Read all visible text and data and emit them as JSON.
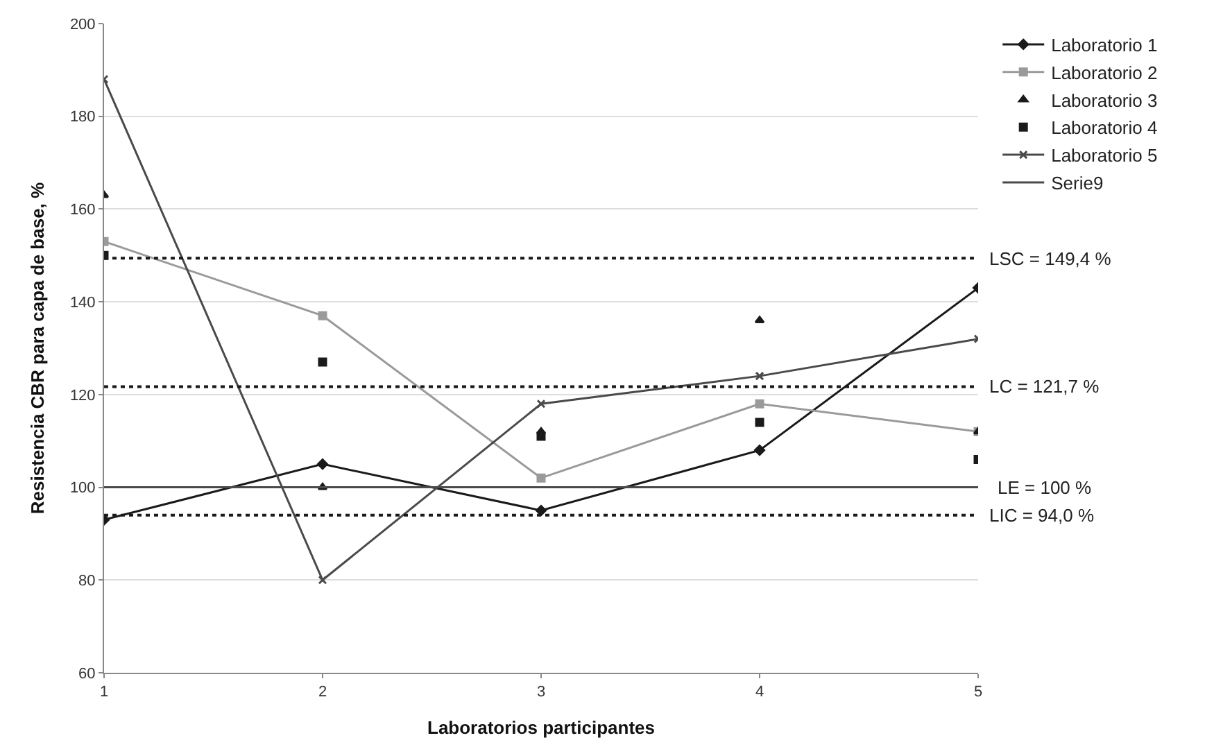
{
  "chart_data": {
    "type": "line",
    "xlabel": "Laboratorios participantes",
    "ylabel": "Resistencia CBR para capa de base, %",
    "x": [
      1,
      2,
      3,
      4,
      5
    ],
    "xlim": [
      1,
      5
    ],
    "xticks": [
      1,
      2,
      3,
      4,
      5
    ],
    "ylim": [
      60,
      200
    ],
    "yticks": [
      60,
      80,
      100,
      120,
      140,
      160,
      180,
      200
    ],
    "grid": "y",
    "legend": "top right",
    "series": [
      {
        "name": "Laboratorio 1",
        "color": "#1a1a1a",
        "marker": "diamond",
        "values": [
          93,
          105,
          95,
          108,
          143
        ]
      },
      {
        "name": "Laboratorio 2",
        "color": "#9a9a9a",
        "marker": "square",
        "values": [
          153,
          137,
          102,
          118,
          112
        ]
      },
      {
        "name": "Laboratorio 3",
        "type": "scatter",
        "color": "#1a1a1a",
        "marker": "triangle",
        "values": [
          163,
          100,
          112,
          136,
          112
        ]
      },
      {
        "name": "Laboratorio 4",
        "type": "scatter",
        "color": "#1a1a1a",
        "marker": "square",
        "values": [
          150,
          127,
          111,
          114,
          106
        ]
      },
      {
        "name": "Laboratorio 5",
        "color": "#4a4a4a",
        "marker": "cross",
        "values": [
          188,
          80,
          118,
          124,
          132
        ]
      },
      {
        "name": "Serie9",
        "color": "#4a4a4a",
        "marker": "none",
        "values": [
          100,
          100,
          100,
          100,
          100
        ]
      }
    ],
    "ref_lines": [
      {
        "axis": "y",
        "value": 149.4,
        "label": "LSC = 149,4 %",
        "line_style": "dotted",
        "color": "#1a1a1a"
      },
      {
        "axis": "y",
        "value": 121.7,
        "label": "LC = 121,7 %",
        "line_style": "dotted",
        "color": "#1a1a1a"
      },
      {
        "axis": "y",
        "value": 94.0,
        "label": "LIC = 94,0 %",
        "line_style": "dotted",
        "color": "#1a1a1a"
      }
    ],
    "annotations": [
      {
        "text": "LE = 100 %",
        "x": 5,
        "y": 100
      }
    ]
  }
}
